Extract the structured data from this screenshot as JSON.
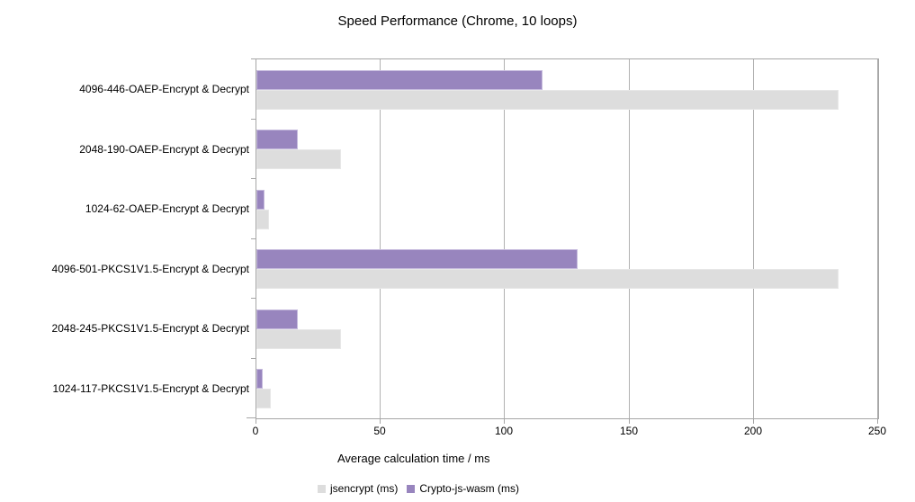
{
  "chart": {
    "title": "Speed Performance (Chrome, 10 loops)",
    "xlabel": "Average calculation time / ms"
  },
  "chart_data": {
    "type": "bar",
    "orientation": "horizontal",
    "title": "Speed Performance (Chrome, 10 loops)",
    "xlabel": "Average calculation time / ms",
    "ylabel": "",
    "xlim": [
      0,
      250
    ],
    "x_ticks": [
      0,
      50,
      100,
      150,
      200,
      250
    ],
    "grid": true,
    "grid_color": "#b2b2b2",
    "legend_position": "bottom",
    "categories": [
      "4096-446-OAEP-Encrypt & Decrypt",
      "2048-190-OAEP-Encrypt & Decrypt",
      "1024-62-OAEP-Encrypt & Decrypt",
      "4096-501-PKCS1V1.5-Encrypt & Decrypt",
      "2048-245-PKCS1V1.5-Encrypt & Decrypt",
      "1024-117-PKCS1V1.5-Encrypt & Decrypt"
    ],
    "series": [
      {
        "name": "jsencrypt (ms)",
        "color": "#dddddd",
        "values": [
          234,
          34,
          5,
          234,
          34,
          5.9
        ]
      },
      {
        "name": "Crypto-js-wasm (ms)",
        "color": "#9885be",
        "values": [
          115,
          16.5,
          3.2,
          129,
          16.5,
          2.6
        ]
      }
    ]
  }
}
